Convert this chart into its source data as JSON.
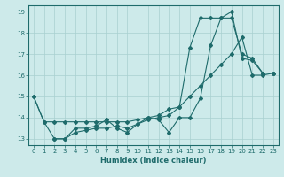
{
  "xlabel": "Humidex (Indice chaleur)",
  "xlim": [
    -0.5,
    23.5
  ],
  "ylim": [
    12.7,
    19.3
  ],
  "yticks": [
    13,
    14,
    15,
    16,
    17,
    18,
    19
  ],
  "xticks": [
    0,
    1,
    2,
    3,
    4,
    5,
    6,
    7,
    8,
    9,
    10,
    11,
    12,
    13,
    14,
    15,
    16,
    17,
    18,
    19,
    20,
    21,
    22,
    23
  ],
  "bg_color": "#cdeaea",
  "grid_color": "#a8d0d0",
  "line_color": "#1e6b6b",
  "series1_x": [
    0,
    1,
    2,
    3,
    4,
    5,
    6,
    7,
    8,
    9,
    10,
    11,
    12,
    13,
    14,
    15,
    16,
    17,
    18,
    19,
    20,
    21,
    22,
    23
  ],
  "series1_y": [
    15.0,
    13.8,
    13.8,
    13.8,
    13.8,
    13.8,
    13.8,
    13.8,
    13.8,
    13.8,
    13.9,
    14.0,
    14.1,
    14.4,
    14.5,
    17.3,
    18.7,
    18.7,
    18.7,
    18.7,
    17.0,
    16.8,
    16.1,
    16.1
  ],
  "series2_x": [
    2,
    3,
    4,
    5,
    6,
    7,
    8,
    9,
    10,
    11,
    12,
    13,
    14,
    15,
    16,
    17,
    18,
    19,
    20,
    21,
    22,
    23
  ],
  "series2_y": [
    13.0,
    13.0,
    13.5,
    13.5,
    13.6,
    13.9,
    13.5,
    13.3,
    13.7,
    14.0,
    13.9,
    13.3,
    14.0,
    14.0,
    14.9,
    17.4,
    18.7,
    19.0,
    16.8,
    16.7,
    16.1,
    16.1
  ],
  "series3_x": [
    0,
    1,
    2,
    3,
    4,
    5,
    6,
    7,
    8,
    9,
    10,
    11,
    12,
    13,
    14,
    15,
    16,
    17,
    18,
    19,
    20,
    21,
    22,
    23
  ],
  "series3_y": [
    15.0,
    13.8,
    13.0,
    13.0,
    13.3,
    13.4,
    13.5,
    13.5,
    13.6,
    13.5,
    13.7,
    13.9,
    14.0,
    14.1,
    14.5,
    15.0,
    15.5,
    16.0,
    16.5,
    17.0,
    17.8,
    16.0,
    16.0,
    16.1
  ]
}
